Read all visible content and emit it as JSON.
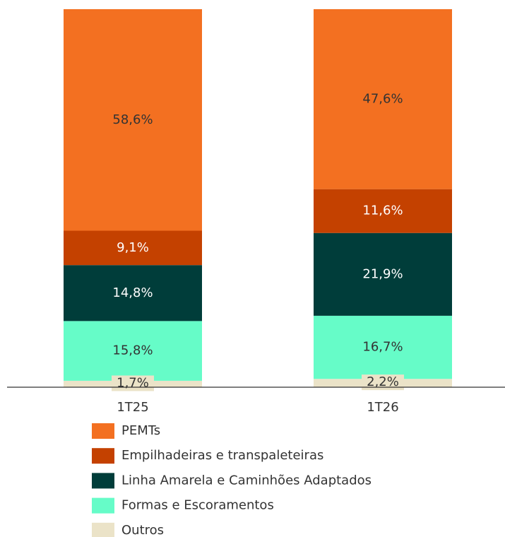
{
  "chart_data": {
    "type": "stacked_bar",
    "categories": [
      "1T25",
      "1T26"
    ],
    "series": [
      {
        "name": "PEMTs",
        "color": "#f37021",
        "values": [
          58.6,
          47.6
        ],
        "value_labels": [
          "58,6%",
          "47,6%"
        ]
      },
      {
        "name": "Empilhadeiras e transpaleteiras",
        "color": "#c44100",
        "values": [
          9.1,
          11.6
        ],
        "value_labels": [
          "9,1%",
          "11,6%"
        ]
      },
      {
        "name": "Linha Amarela e Caminhões Adaptados",
        "color": "#003d3a",
        "values": [
          14.8,
          21.9
        ],
        "value_labels": [
          "14,8%",
          "21,9%"
        ]
      },
      {
        "name": "Formas e Escoramentos",
        "color": "#66fcc8",
        "values": [
          15.8,
          16.7
        ],
        "value_labels": [
          "15,8%",
          "16,7%"
        ]
      },
      {
        "name": "Outros",
        "color": "#ebe3c8",
        "values": [
          1.7,
          2.2
        ],
        "value_labels": [
          "1,7%",
          "2,2%"
        ]
      }
    ],
    "ylim": [
      0,
      100
    ]
  }
}
